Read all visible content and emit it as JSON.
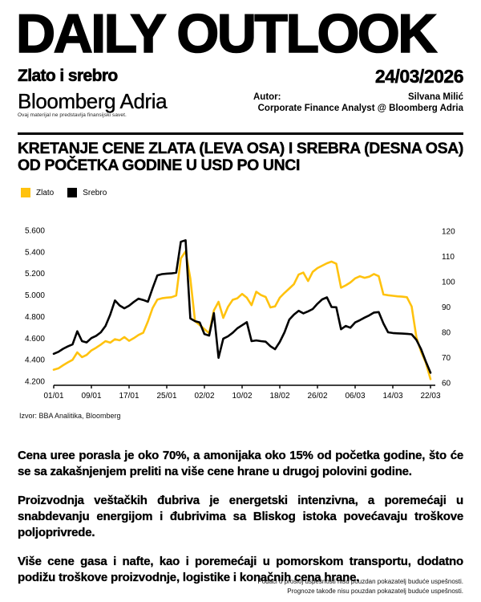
{
  "header": {
    "masthead": "DAILY OUTLOOK",
    "subject": "Zlato i srebro",
    "brand": "Bloomberg Adria",
    "date": "24/03/2026",
    "author_label": "Autor:",
    "author_name": "Silvana Milić",
    "author_title": "Corporate Finance Analyst @ Bloomberg Adria",
    "disclaimer": "Ovaj materijal ne predstavlja finansijski savet."
  },
  "chart": {
    "title": "KRETANJE CENE ZLATA (LEVA OSA) I SREBRA (DESNA OSA) OD POČETKA GODINE U USD PO UNCI",
    "source": "Izvor: BBA Analitika, Bloomberg"
  },
  "chart_data": {
    "type": "line",
    "grid": false,
    "legend_position": "top-left",
    "x_axis": {
      "tick_labels": [
        "01/01",
        "09/01",
        "17/01",
        "25/01",
        "02/02",
        "10/02",
        "18/02",
        "26/02",
        "06/03",
        "14/03",
        "22/03"
      ],
      "tick_days": [
        0,
        8,
        16,
        24,
        32,
        40,
        48,
        56,
        64,
        72,
        80
      ],
      "points_per_series": 81
    },
    "left_axis": {
      "min": 4200,
      "max": 5600,
      "tick_values": [
        4200,
        4400,
        4600,
        4800,
        5000,
        5200,
        5400,
        5600
      ],
      "tick_labels": [
        "4.200",
        "4.400",
        "4.600",
        "4.800",
        "5.000",
        "5.200",
        "5.400",
        "5.600"
      ]
    },
    "right_axis": {
      "min": 60,
      "max": 120,
      "tick_values": [
        60,
        70,
        80,
        90,
        100,
        110,
        120
      ],
      "tick_labels": [
        "60",
        "70",
        "80",
        "90",
        "100",
        "110",
        "120"
      ]
    },
    "series": [
      {
        "name": "Zlato",
        "axis": "left",
        "color": "#FFC20E",
        "values": [
          4307,
          4320,
          4349,
          4375,
          4399,
          4468,
          4424,
          4444,
          4486,
          4511,
          4540,
          4572,
          4558,
          4590,
          4580,
          4610,
          4575,
          4600,
          4630,
          4650,
          4755,
          4880,
          4958,
          4970,
          4976,
          4980,
          4995,
          5340,
          5405,
          5155,
          4758,
          4721,
          4684,
          4645,
          4857,
          4937,
          4788,
          4890,
          4956,
          4970,
          5010,
          4975,
          4906,
          5030,
          5000,
          4982,
          4885,
          4895,
          4975,
          5020,
          5060,
          5100,
          5190,
          5208,
          5130,
          5215,
          5250,
          5272,
          5295,
          5310,
          5290,
          5068,
          5090,
          5117,
          5155,
          5174,
          5160,
          5170,
          5195,
          5175,
          5005,
          4998,
          4993,
          4988,
          4985,
          4980,
          4894,
          4609,
          4473,
          4374,
          4220
        ]
      },
      {
        "name": "Srebro",
        "axis": "right",
        "color": "#000000",
        "values": [
          71.5,
          72.3,
          73.5,
          74.4,
          75.2,
          80.4,
          76.5,
          76.0,
          77.7,
          78.6,
          80.0,
          82.5,
          87.0,
          92.6,
          90.6,
          89.5,
          90.5,
          92.0,
          93.3,
          92.8,
          92.1,
          97.5,
          102.5,
          103.0,
          103.2,
          103.3,
          103.6,
          115.8,
          116.4,
          85.5,
          84.4,
          83.9,
          79.3,
          78.7,
          87.6,
          69.9,
          77.5,
          78.4,
          79.8,
          81.6,
          82.8,
          84.0,
          76.5,
          76.8,
          76.5,
          76.3,
          74.5,
          73.3,
          76.2,
          80.0,
          85.0,
          87.0,
          88.5,
          87.5,
          88.3,
          89.2,
          91.3,
          93.0,
          93.8,
          90.0,
          89.9,
          81.2,
          82.5,
          81.8,
          83.9,
          84.8,
          85.8,
          86.7,
          87.8,
          88.0,
          83.5,
          80.0,
          79.7,
          79.6,
          79.5,
          79.4,
          79.2,
          77.0,
          73.3,
          68.5,
          64.0
        ]
      }
    ]
  },
  "body": {
    "paragraphs": [
      "Cena uree porasla je oko 70%, a amonijaka oko 15% od početka godine, što će se sa zakašnjenjem preliti na više cene hrane u drugoj polovini godine.",
      "Proizvodnja veštačkih đubriva je energetski intenzivna, a poremećaji u snabdevanju energijom i đubrivima sa Bliskog istoka povećavaju troškove poljoprivrede.",
      "Više cene gasa i nafte, kao i poremećaji u pomorskom transportu, dodatno podižu troškove proizvodnje, logistike i konačnih cena hrane."
    ]
  },
  "footer": {
    "line1": "Podaci o prošloj uspešnosti nisu pouzdan pokazatelj buduće uspešnosti.",
    "line2": "Prognoze takođe nisu pouzdan pokazatelj buduće uspešnosti."
  }
}
